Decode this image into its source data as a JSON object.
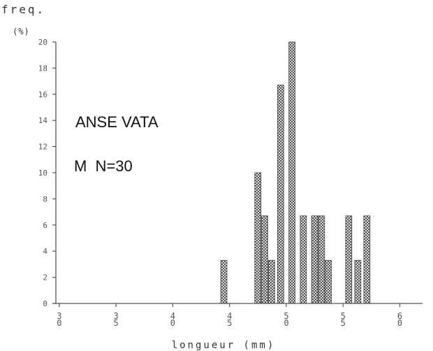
{
  "chart_data": {
    "type": "bar",
    "ylabel_line1": "freq.",
    "ylabel_line2": "(%)",
    "xlabel": "longueur (mm)",
    "ylim": [
      0,
      20
    ],
    "y_ticks": [
      "0",
      "2",
      "4",
      "6",
      "8",
      "10",
      "12",
      "14",
      "16",
      "18",
      "20"
    ],
    "x_ticks": [
      {
        "value": 3.0,
        "label": "3\n0"
      },
      {
        "value": 3.5,
        "label": "3\n5"
      },
      {
        "value": 4.0,
        "label": "4\n0"
      },
      {
        "value": 4.5,
        "label": "4\n5"
      },
      {
        "value": 5.0,
        "label": "5\n0"
      },
      {
        "value": 5.5,
        "label": "5\n5"
      },
      {
        "value": 6.0,
        "label": "6\n0"
      }
    ],
    "xlim": [
      2.97,
      6.2
    ],
    "bin_width": 0.1,
    "bars": [
      {
        "x": 4.45,
        "value": 3.3
      },
      {
        "x": 4.75,
        "value": 10.0
      },
      {
        "x": 4.81,
        "value": 6.7
      },
      {
        "x": 4.87,
        "value": 3.3
      },
      {
        "x": 4.95,
        "value": 16.7
      },
      {
        "x": 5.05,
        "value": 20.0
      },
      {
        "x": 5.15,
        "value": 6.7
      },
      {
        "x": 5.25,
        "value": 6.7
      },
      {
        "x": 5.31,
        "value": 6.7
      },
      {
        "x": 5.37,
        "value": 3.3
      },
      {
        "x": 5.55,
        "value": 6.7
      },
      {
        "x": 5.63,
        "value": 3.3
      },
      {
        "x": 5.71,
        "value": 6.7
      }
    ],
    "annotations": [
      "ANSE VATA",
      "M  N=30"
    ]
  }
}
